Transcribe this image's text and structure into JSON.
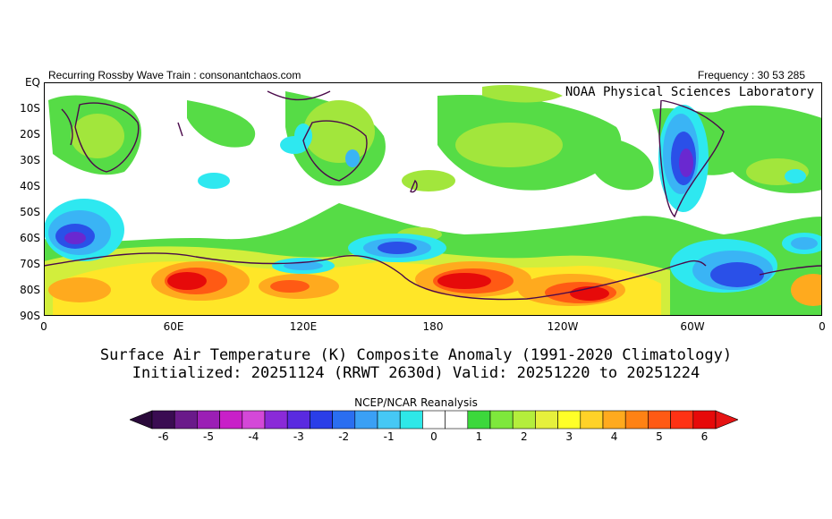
{
  "header": {
    "left_text": "Recurring Rossby Wave Train : consonantchaos.com",
    "right_text": "Frequency : 30 53 285"
  },
  "badge": "NOAA Physical Sciences Laboratory",
  "title_line1": "Surface Air Temperature (K) Composite Anomaly (1991-2020 Climatology)",
  "title_line2": "Initialized: 20251124 (RRWT 2630d) Valid: 20251220 to 20251224",
  "source": "NCEP/NCAR Reanalysis",
  "axes": {
    "lat_labels": [
      "EQ",
      "10S",
      "20S",
      "30S",
      "40S",
      "50S",
      "60S",
      "70S",
      "80S",
      "90S"
    ],
    "lon_labels": [
      "0",
      "60E",
      "120E",
      "180",
      "120W",
      "60W",
      "0"
    ]
  },
  "colorbar": {
    "labels": [
      "-6",
      "-5",
      "-4",
      "-3",
      "-2",
      "-1",
      "0",
      "1",
      "2",
      "3",
      "4",
      "5",
      "6"
    ],
    "colors": [
      "#3a0c52",
      "#6a1a8a",
      "#9b1fb5",
      "#c820c8",
      "#d448d8",
      "#8a2ad8",
      "#5a2ae0",
      "#2a3ee8",
      "#2a6ef0",
      "#3aa0f5",
      "#46c8f5",
      "#2ee8e8",
      "#ffffff",
      "#ffffff",
      "#3cd83c",
      "#7ee83c",
      "#b4ee3c",
      "#e6f03c",
      "#ffff28",
      "#ffd228",
      "#ffaa1e",
      "#ff8214",
      "#ff5a14",
      "#ff3214",
      "#e60a0a"
    ],
    "under_color": "#2a0a3a",
    "over_color": "#e61414"
  },
  "palette": {
    "green": "#56dc46",
    "light_green": "#a2e63c",
    "yellow_green": "#d2ee3c",
    "yellow": "#ffe628",
    "orange": "#ffaa1e",
    "red_orange": "#ff5a14",
    "red": "#e60a0a",
    "cyan": "#2ee8f0",
    "light_blue": "#3ab4f5",
    "blue": "#2a50e8",
    "purple": "#6a28d0"
  }
}
